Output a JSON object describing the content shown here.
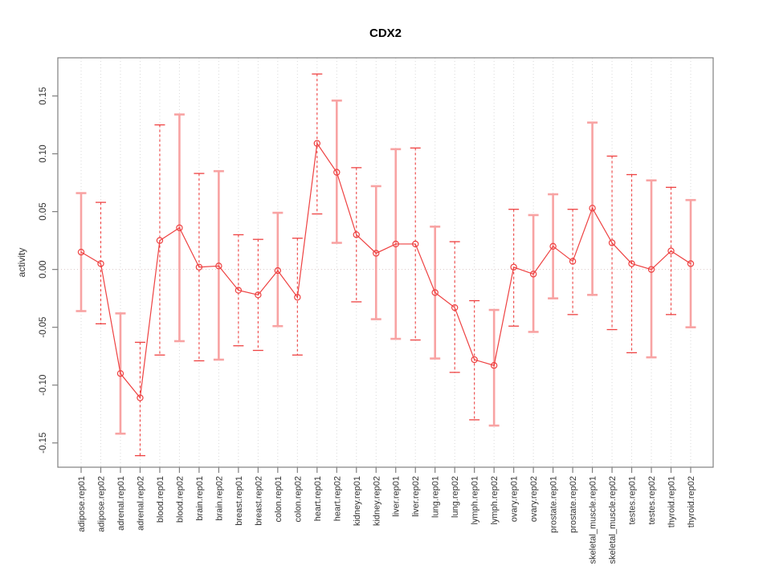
{
  "chart_data": {
    "type": "line",
    "subtype": "point-error-bar",
    "title": "CDX2",
    "ylabel": "activity",
    "xlabel": "",
    "axis_range": [
      -0.171,
      0.183
    ],
    "yticks": [
      -0.15,
      -0.1,
      -0.05,
      0,
      0.05,
      0.1,
      0.15
    ],
    "ytick_labels": [
      "-0.15",
      "-0.10",
      "-0.05",
      "0.00",
      "0.05",
      "0.10",
      "0.15"
    ],
    "grid": "vertical-dotted",
    "zero_line": true,
    "legend": "none",
    "categories": [
      "adipose.rep01",
      "adipose.rep02",
      "adrenal.rep01",
      "adrenal.rep02",
      "blood.rep01",
      "blood.rep02",
      "brain.rep01",
      "brain.rep02",
      "breast.rep01",
      "breast.rep02",
      "colon.rep01",
      "colon.rep02",
      "heart.rep01",
      "heart.rep02",
      "kidney.rep01",
      "kidney.rep02",
      "liver.rep01",
      "liver.rep02",
      "lung.rep01",
      "lung.rep02",
      "lymph.rep01",
      "lymph.rep02",
      "ovary.rep01",
      "ovary.rep02",
      "prostate.rep01",
      "prostate.rep02",
      "skeletal_muscle.rep01",
      "skeletal_muscle.rep02",
      "testes.rep01",
      "testes.rep02",
      "thyroid.rep01",
      "thyroid.rep02"
    ],
    "series": [
      {
        "name": "activity",
        "values": [
          0.015,
          0.005,
          -0.09,
          -0.111,
          0.025,
          0.036,
          0.002,
          0.003,
          -0.018,
          -0.022,
          -0.001,
          -0.024,
          0.109,
          0.084,
          0.03,
          0.014,
          0.022,
          0.022,
          -0.02,
          -0.033,
          -0.078,
          -0.083,
          0.002,
          -0.004,
          0.02,
          0.007,
          0.053,
          0.023,
          0.005,
          0.0,
          0.016,
          0.005
        ],
        "ci_low": [
          -0.036,
          -0.047,
          -0.142,
          -0.161,
          -0.074,
          -0.062,
          -0.079,
          -0.078,
          -0.066,
          -0.07,
          -0.049,
          -0.074,
          0.048,
          0.023,
          -0.028,
          -0.043,
          -0.06,
          -0.061,
          -0.077,
          -0.089,
          -0.13,
          -0.135,
          -0.049,
          -0.054,
          -0.025,
          -0.039,
          -0.022,
          -0.052,
          -0.072,
          -0.076,
          -0.039,
          -0.05
        ],
        "ci_high": [
          0.066,
          0.058,
          -0.038,
          -0.063,
          0.125,
          0.134,
          0.083,
          0.085,
          0.03,
          0.026,
          0.049,
          0.027,
          0.169,
          0.146,
          0.088,
          0.072,
          0.104,
          0.105,
          0.037,
          0.024,
          -0.027,
          -0.035,
          0.052,
          0.047,
          0.065,
          0.052,
          0.127,
          0.098,
          0.082,
          0.077,
          0.071,
          0.06
        ],
        "bar_styles": [
          "solid",
          "dashed",
          "solid",
          "dashed",
          "dashed",
          "solid",
          "dashed",
          "solid",
          "dashed",
          "dashed",
          "solid",
          "dashed",
          "dashed",
          "solid",
          "dashed",
          "solid",
          "solid",
          "dashed",
          "solid",
          "dashed",
          "dashed",
          "solid",
          "dashed",
          "solid",
          "solid",
          "dashed",
          "solid",
          "dashed",
          "dashed",
          "solid",
          "dashed",
          "solid"
        ]
      }
    ],
    "colors": {
      "point": "#ee4141",
      "line": "#ee4141",
      "bar_solid": "#f8a3a3",
      "bar_dashed": "#ee4141",
      "grid": "#d9d9d9",
      "zero_line": "#d9c8c8",
      "frame": "#808080",
      "tick_text": "#333333",
      "title_text": "#000000",
      "background": "#ffffff"
    }
  }
}
